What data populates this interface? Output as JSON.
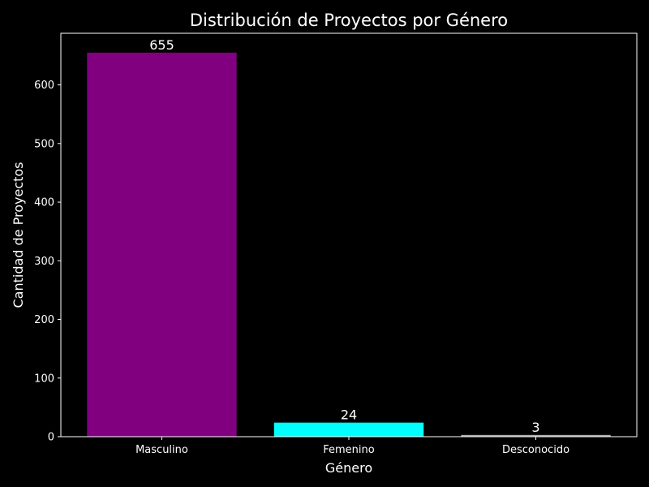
{
  "chart_data": {
    "type": "bar",
    "title": "Distribución de Proyectos por Género",
    "xlabel": "Género",
    "ylabel": "Cantidad de Proyectos",
    "categories": [
      "Masculino",
      "Femenino",
      "Desconocido"
    ],
    "values": [
      655,
      24,
      3
    ],
    "data_labels": [
      "655",
      "24",
      "3"
    ],
    "colors": [
      "#800080",
      "#00ffff",
      "#a9a9a9"
    ],
    "ylim": [
      0,
      688
    ],
    "yticks": [
      0,
      100,
      200,
      300,
      400,
      500,
      600
    ],
    "grid": false,
    "legend": "none"
  },
  "theme": {
    "background": "#000000",
    "foreground": "#ffffff"
  }
}
